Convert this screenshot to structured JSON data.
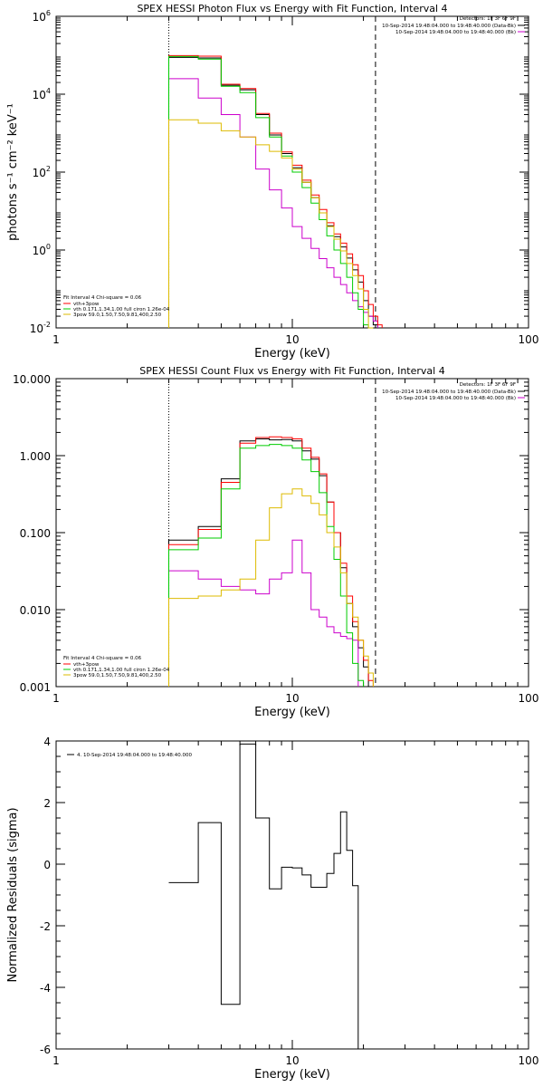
{
  "chart_data": [
    {
      "type": "line",
      "title": "SPEX HESSI Photon Flux vs Energy with Fit Function, Interval 4",
      "xlabel": "Energy (keV)",
      "ylabel": "photons s⁻¹ cm⁻² keV⁻¹",
      "x_scale": "log",
      "y_scale": "log",
      "xlim": [
        1,
        100
      ],
      "ylim": [
        0.01,
        1000000
      ],
      "x_ticks": [
        {
          "v": 1,
          "label": "1"
        },
        {
          "v": 10,
          "label": "10"
        },
        {
          "v": 100,
          "label": "100"
        }
      ],
      "y_ticks": [
        {
          "v": 0.01,
          "base": "10",
          "exp": "-2"
        },
        {
          "v": 1,
          "base": "10",
          "exp": "0"
        },
        {
          "v": 100,
          "base": "10",
          "exp": "2"
        },
        {
          "v": 10000,
          "base": "10",
          "exp": "4"
        },
        {
          "v": 1000000,
          "base": "10",
          "exp": "6"
        }
      ],
      "vlines": [
        {
          "x": 3,
          "style": "dotted"
        },
        {
          "x": 22.5,
          "style": "dashed"
        }
      ],
      "edges": [
        3,
        4,
        5,
        6,
        7,
        8,
        9,
        10,
        11,
        12,
        13,
        14,
        15,
        16,
        17,
        18,
        19,
        20,
        21,
        22,
        23,
        24,
        25
      ],
      "series": [
        {
          "name": "10-Sep-2014 19:48:04.000 to 19:48:40.000 (Data-Bk)",
          "color": "#000000",
          "values": [
            88000,
            85000,
            17000,
            13000,
            3000,
            900,
            300,
            130,
            55,
            22,
            9,
            4.2,
            2.2,
            1.2,
            0.62,
            0.31,
            0.15,
            0.05,
            0.02,
            0.012,
            null,
            null
          ]
        },
        {
          "name": "10-Sep-2014 19:48:04.000 to 19:48:40.000 (Bk)",
          "color": "#cc00cc",
          "values": [
            25000,
            8000,
            3000,
            800,
            120,
            35,
            12,
            4,
            2,
            1.1,
            0.6,
            0.35,
            0.2,
            0.13,
            0.08,
            0.05,
            0.035,
            0.025,
            0.02,
            0.015,
            null,
            null
          ]
        },
        {
          "name": "vth+3pow",
          "color": "#ff0000",
          "values": [
            98000,
            95000,
            18000,
            14000,
            3200,
            1000,
            330,
            150,
            62,
            26,
            11,
            5,
            2.6,
            1.5,
            0.8,
            0.42,
            0.22,
            0.09,
            0.04,
            0.02,
            0.012,
            null
          ]
        },
        {
          "name": "vth 0.171,1.34,1.00 full ciron 1.26e-04",
          "color": "#00cc00",
          "values": [
            93000,
            80000,
            16000,
            11000,
            2500,
            800,
            260,
            100,
            40,
            16,
            6,
            2.3,
            1,
            0.45,
            0.2,
            0.08,
            0.03,
            0.012,
            null,
            null,
            null,
            null
          ]
        },
        {
          "name": "3pow 59.0,1.50,7.50,9.81,400,2.50",
          "color": "#ddbb00",
          "values": [
            2200,
            1800,
            1150,
            800,
            500,
            340,
            230,
            120,
            55,
            22,
            9,
            4,
            1.9,
            0.95,
            0.45,
            0.22,
            0.1,
            0.03,
            0.01,
            null,
            null,
            null
          ]
        }
      ],
      "legend_header": "Detectors: 1F 3F 6F 9F",
      "legend_series_count": 2,
      "fit_info_title": "Fit Interval 4   Chi-square = 0.06",
      "fit_info_series": [
        2,
        3,
        4
      ]
    },
    {
      "type": "line",
      "title": "SPEX HESSI Count Flux vs Energy with Fit Function, Interval 4",
      "xlabel": "Energy (keV)",
      "ylabel": "",
      "x_scale": "log",
      "y_scale": "log",
      "xlim": [
        1,
        100
      ],
      "ylim": [
        0.001,
        10
      ],
      "x_ticks": [
        {
          "v": 1,
          "label": "1"
        },
        {
          "v": 10,
          "label": "10"
        },
        {
          "v": 100,
          "label": "100"
        }
      ],
      "y_ticks": [
        {
          "v": 0.001,
          "label": "0.001"
        },
        {
          "v": 0.01,
          "label": "0.010"
        },
        {
          "v": 0.1,
          "label": "0.100"
        },
        {
          "v": 1,
          "label": "1.000"
        },
        {
          "v": 10,
          "label": "10.000"
        }
      ],
      "vlines": [
        {
          "x": 3,
          "style": "dotted"
        },
        {
          "x": 22.5,
          "style": "dashed"
        }
      ],
      "edges": [
        3,
        4,
        5,
        6,
        7,
        8,
        9,
        10,
        11,
        12,
        13,
        14,
        15,
        16,
        17,
        18,
        19,
        20,
        21,
        22,
        23,
        24,
        25
      ],
      "series": [
        {
          "name": "10-Sep-2014 19:48:04.000 to 19:48:40.000 (Data-Bk)",
          "color": "#000000",
          "values": [
            0.08,
            0.12,
            0.5,
            1.55,
            1.65,
            1.6,
            1.62,
            1.55,
            1.15,
            0.9,
            0.55,
            0.25,
            0.1,
            0.035,
            0.012,
            0.006,
            0.0032,
            0.0018,
            null,
            null,
            null,
            null
          ]
        },
        {
          "name": "10-Sep-2014 19:48:04.000 to 19:48:40.000 (Bk)",
          "color": "#cc00cc",
          "values": [
            0.032,
            0.025,
            0.02,
            0.018,
            0.016,
            0.025,
            0.03,
            0.08,
            0.03,
            0.01,
            0.008,
            0.006,
            0.005,
            0.0045,
            0.0042,
            0.004,
            null,
            null,
            null,
            null,
            null,
            null
          ]
        },
        {
          "name": "vth+3pow",
          "color": "#ff0000",
          "values": [
            0.07,
            0.11,
            0.45,
            1.45,
            1.72,
            1.75,
            1.72,
            1.65,
            1.25,
            0.95,
            0.58,
            0.25,
            0.1,
            0.04,
            0.015,
            0.007,
            0.004,
            0.0022,
            0.0012,
            null,
            null,
            null
          ]
        },
        {
          "name": "vth 0.171,1.34,1.00 full ciron 1.26e-04",
          "color": "#00cc00",
          "values": [
            0.06,
            0.085,
            0.37,
            1.25,
            1.35,
            1.4,
            1.35,
            1.25,
            0.88,
            0.62,
            0.33,
            0.12,
            0.045,
            0.015,
            0.005,
            0.002,
            0.0012,
            null,
            null,
            null,
            null,
            null
          ]
        },
        {
          "name": "3pow 59.0,1.50,7.50,9.81,400,2.50",
          "color": "#ddbb00",
          "values": [
            0.014,
            0.015,
            0.018,
            0.025,
            0.08,
            0.21,
            0.32,
            0.37,
            0.3,
            0.24,
            0.17,
            0.1,
            0.065,
            0.03,
            0.012,
            0.008,
            0.004,
            0.0025,
            0.0015,
            null,
            null,
            null
          ]
        }
      ],
      "legend_header": "Detectors: 1F 3F 6F 9F",
      "legend_series_count": 2,
      "fit_info_title": "Fit Interval 4   Chi-square = 0.06",
      "fit_info_series": [
        2,
        3,
        4
      ]
    },
    {
      "type": "line",
      "title": "",
      "xlabel": "Energy (keV)",
      "ylabel": "Normalized Residuals (sigma)",
      "x_scale": "log",
      "y_scale": "linear",
      "xlim": [
        1,
        100
      ],
      "ylim": [
        -6,
        4
      ],
      "x_ticks": [
        {
          "v": 1,
          "label": "1"
        },
        {
          "v": 10,
          "label": "10"
        },
        {
          "v": 100,
          "label": "100"
        }
      ],
      "y_ticks": [
        {
          "v": -6,
          "label": "-6"
        },
        {
          "v": -4,
          "label": "-4"
        },
        {
          "v": -2,
          "label": "-2"
        },
        {
          "v": 0,
          "label": "0"
        },
        {
          "v": 2,
          "label": "2"
        },
        {
          "v": 4,
          "label": "4"
        }
      ],
      "edges": [
        3,
        4,
        5,
        6,
        7,
        8,
        9,
        10,
        11,
        12,
        13,
        14,
        15,
        16,
        17,
        18,
        19,
        20,
        21,
        22,
        23
      ],
      "series": [
        {
          "name": "4. 10-Sep-2014 19:48:04.000 to 19:48:40.000",
          "color": "#000000",
          "values": [
            -0.6,
            1.35,
            -4.55,
            3.9,
            1.5,
            -0.8,
            -0.1,
            -0.12,
            -0.35,
            -0.75,
            -0.75,
            -0.3,
            0.35,
            1.7,
            0.45,
            -0.7,
            null,
            null,
            null,
            null
          ]
        }
      ],
      "legend_entries": [
        "4. 10-Sep-2014 19:48:04.000 to 19:48:40.000"
      ]
    }
  ]
}
